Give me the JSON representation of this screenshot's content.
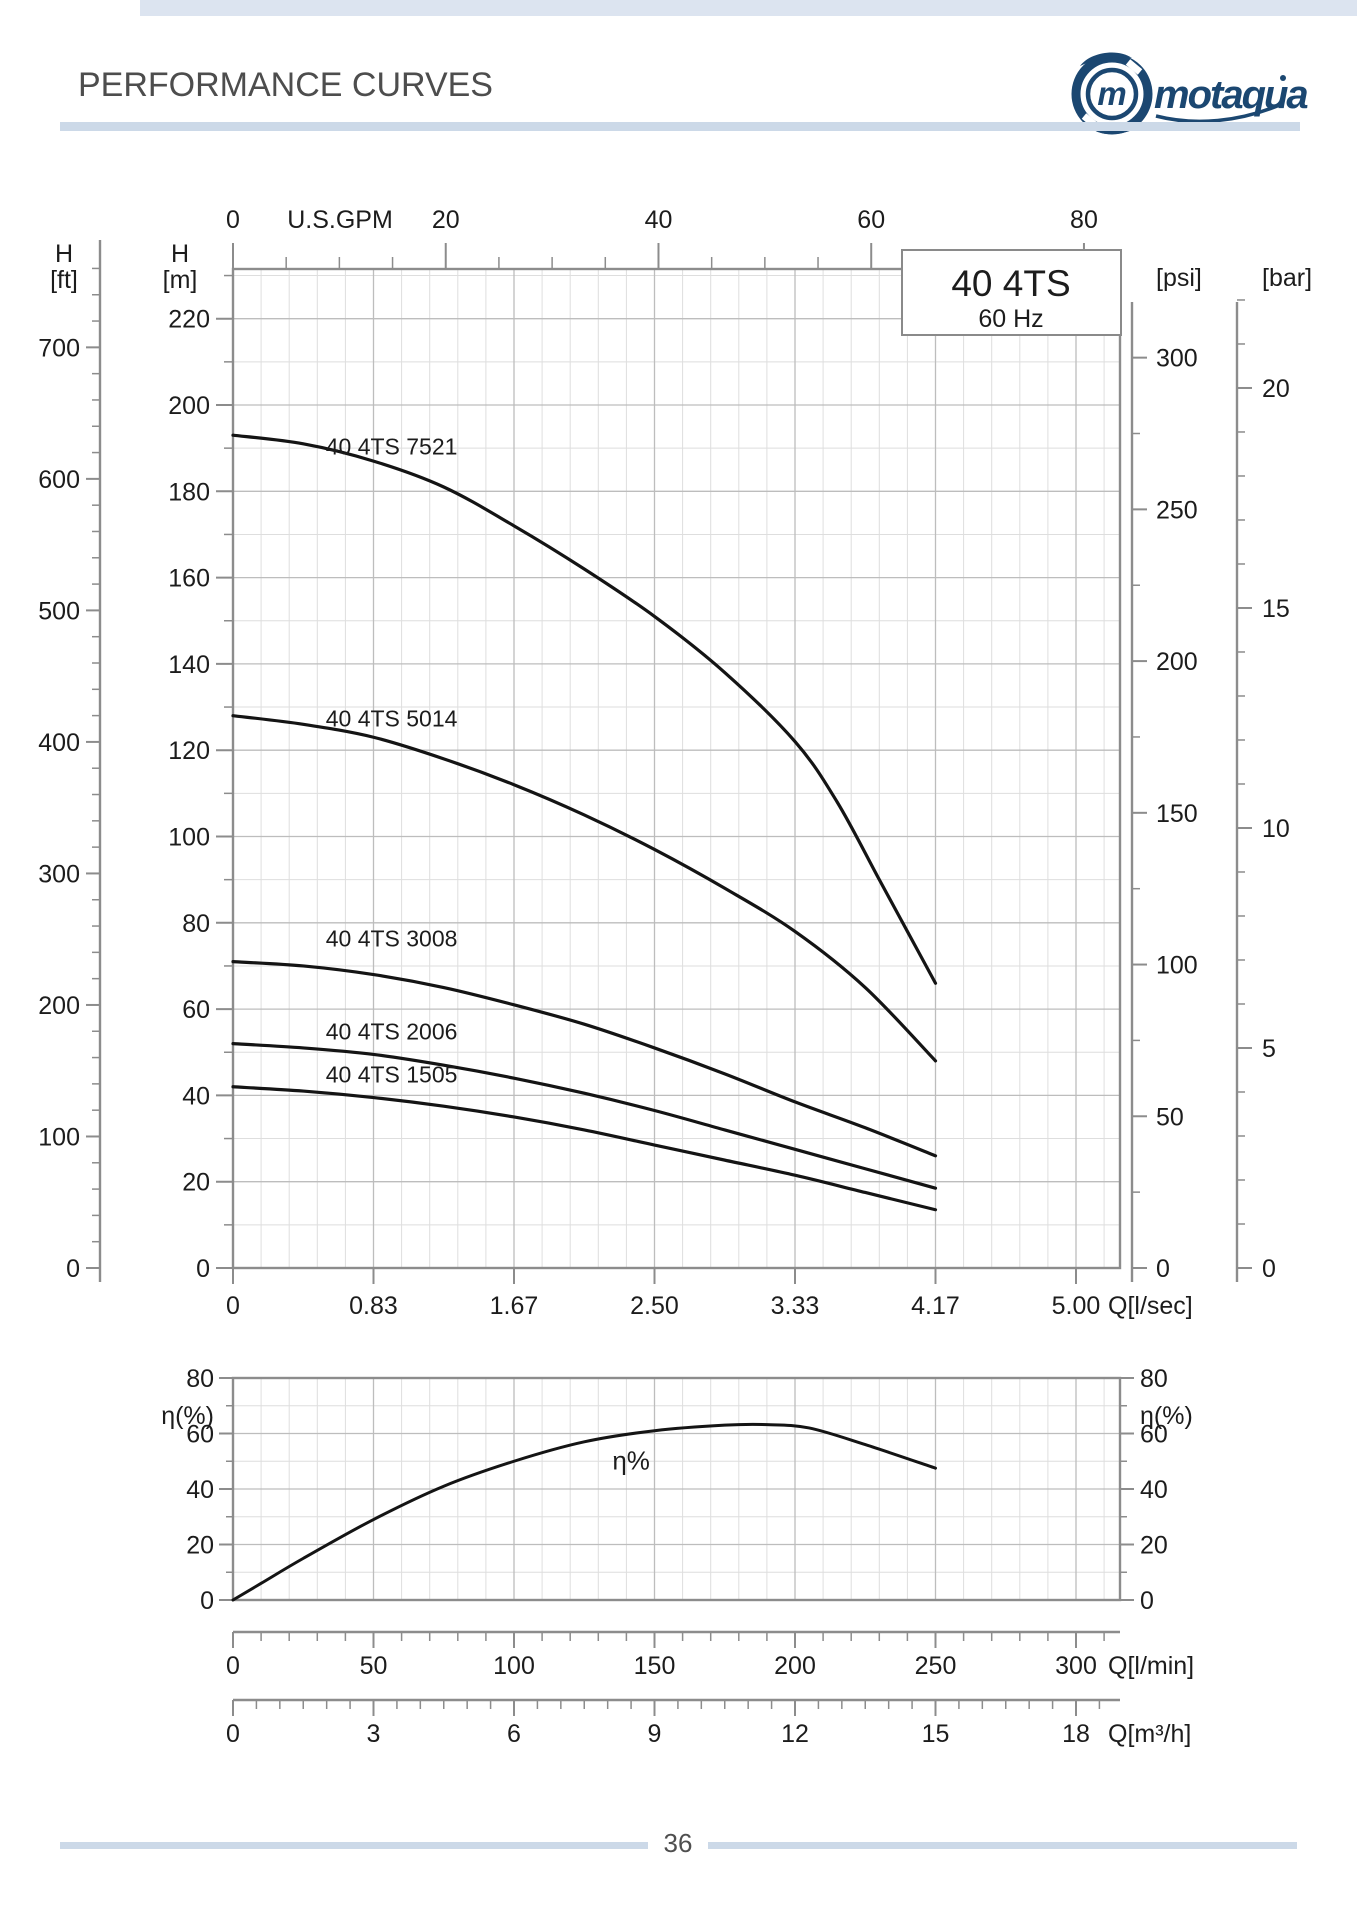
{
  "header": {
    "title": "PERFORMANCE CURVES",
    "logo_text": "motaqua",
    "logo_mark": "m"
  },
  "footer": {
    "page_number": "36"
  },
  "colors": {
    "accent_bar": "#ccd9e8",
    "logo_navy": "#1b4771",
    "curve": "#141414",
    "grid_minor": "#dedede",
    "grid_major": "#bdbdbd",
    "axis_gray": "#8c8c8c",
    "text": "#1c1c1c"
  },
  "chart_data": [
    {
      "type": "line",
      "id": "head_curves",
      "legend": {
        "title": "40 4TS",
        "subtitle": "60 Hz"
      },
      "axes": {
        "top": {
          "label": "U.S.GPM",
          "ticks": [
            0,
            20,
            40,
            60,
            80
          ],
          "minor_step": 5,
          "lmin_per_unit": 3.7854
        },
        "bottom": {
          "label": "Q[l/sec]",
          "tick_positions_lmin": [
            0,
            50,
            100,
            150,
            200,
            250,
            300
          ],
          "tick_labels": [
            "0",
            "0.83",
            "1.67",
            "2.50",
            "3.33",
            "4.17",
            "5.00"
          ]
        },
        "left_ft": {
          "label_lines": [
            "H",
            "[ft]"
          ],
          "ticks": [
            0,
            100,
            200,
            300,
            400,
            500,
            600,
            700
          ],
          "minor_step": 20,
          "m_per_unit": 0.3048
        },
        "left_m": {
          "label_lines": [
            "H",
            "[m]"
          ],
          "ticks": [
            0,
            20,
            40,
            60,
            80,
            100,
            120,
            140,
            160,
            180,
            200,
            220
          ],
          "minor_step": 10
        },
        "right_psi": {
          "label": "[psi]",
          "ticks": [
            0,
            50,
            100,
            150,
            200,
            250,
            300
          ],
          "minor_step": 25,
          "m_per_unit": 0.70325
        },
        "right_bar": {
          "label": "[bar]",
          "ticks": [
            0,
            5,
            10,
            15,
            20
          ],
          "minor_step": 1,
          "m_per_unit": 10.1972
        }
      },
      "grid": {
        "x_minor_lmin": 10,
        "x_major_lmin": 50,
        "y_minor_m": 10,
        "y_major_m": 20
      },
      "x_range_lmin": [
        0,
        315
      ],
      "y_range_m": [
        0,
        231.5
      ],
      "series": [
        {
          "name": "40 4TS 7521",
          "label_at": [
            33,
            188.5
          ],
          "points": [
            [
              0,
              193
            ],
            [
              25,
              191
            ],
            [
              50,
              187
            ],
            [
              75,
              181
            ],
            [
              100,
              172
            ],
            [
              125,
              162
            ],
            [
              150,
              151
            ],
            [
              175,
              138
            ],
            [
              200,
              122
            ],
            [
              215,
              108
            ],
            [
              230,
              90
            ],
            [
              240,
              78
            ],
            [
              250,
              66
            ]
          ]
        },
        {
          "name": "40 4TS 5014",
          "label_at": [
            33,
            125.5
          ],
          "points": [
            [
              0,
              128
            ],
            [
              25,
              126
            ],
            [
              50,
              123
            ],
            [
              75,
              118
            ],
            [
              100,
              112
            ],
            [
              125,
              105
            ],
            [
              150,
              97
            ],
            [
              175,
              88
            ],
            [
              200,
              78
            ],
            [
              225,
              65
            ],
            [
              250,
              48
            ]
          ]
        },
        {
          "name": "40 4TS 3008",
          "label_at": [
            33,
            74.5
          ],
          "points": [
            [
              0,
              71
            ],
            [
              25,
              70
            ],
            [
              50,
              68
            ],
            [
              75,
              65
            ],
            [
              100,
              61
            ],
            [
              125,
              56.5
            ],
            [
              150,
              51
            ],
            [
              175,
              45
            ],
            [
              200,
              38.5
            ],
            [
              225,
              32.5
            ],
            [
              250,
              26
            ]
          ]
        },
        {
          "name": "40 4TS 2006",
          "label_at": [
            33,
            53
          ],
          "points": [
            [
              0,
              52
            ],
            [
              25,
              51
            ],
            [
              50,
              49.5
            ],
            [
              75,
              47
            ],
            [
              100,
              44
            ],
            [
              125,
              40.5
            ],
            [
              150,
              36.5
            ],
            [
              175,
              32
            ],
            [
              200,
              27.5
            ],
            [
              225,
              23
            ],
            [
              250,
              18.5
            ]
          ]
        },
        {
          "name": "40 4TS 1505",
          "label_at": [
            33,
            43
          ],
          "points": [
            [
              0,
              42
            ],
            [
              25,
              41
            ],
            [
              50,
              39.5
            ],
            [
              75,
              37.5
            ],
            [
              100,
              35
            ],
            [
              125,
              32
            ],
            [
              150,
              28.5
            ],
            [
              175,
              25
            ],
            [
              200,
              21.5
            ],
            [
              225,
              17.5
            ],
            [
              250,
              13.5
            ]
          ]
        }
      ]
    },
    {
      "type": "line",
      "id": "efficiency",
      "y_axis": {
        "label": "η(%)",
        "ticks": [
          0,
          20,
          40,
          60,
          80
        ],
        "minor_step": 10
      },
      "x_lmin": {
        "label": "Q[l/min]",
        "ticks": [
          0,
          50,
          100,
          150,
          200,
          250,
          300
        ],
        "minor_step": 10
      },
      "x_m3h": {
        "label": "Q[m³/h]",
        "ticks": [
          0,
          3,
          6,
          9,
          12,
          15,
          18
        ],
        "minor_step": 0.5,
        "lmin_per_unit": 16.6667
      },
      "series": [
        {
          "name": "η%",
          "label_at": [
            135,
            47
          ],
          "points": [
            [
              0,
              0
            ],
            [
              10,
              6
            ],
            [
              25,
              15
            ],
            [
              50,
              29
            ],
            [
              75,
              41
            ],
            [
              100,
              50
            ],
            [
              125,
              57
            ],
            [
              150,
              61
            ],
            [
              175,
              63
            ],
            [
              190,
              63.2
            ],
            [
              205,
              62
            ],
            [
              225,
              56
            ],
            [
              250,
              47.5
            ]
          ]
        }
      ]
    }
  ]
}
